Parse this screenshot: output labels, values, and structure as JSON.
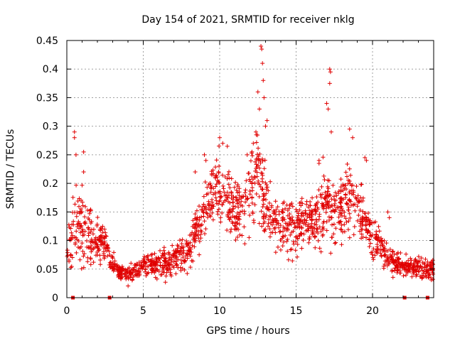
{
  "chart_data": {
    "type": "scatter",
    "title": "Day 154 of 2021, SRMTID for receiver nklg",
    "xlabel": "GPS time / hours",
    "ylabel": "SRMTID / TECUs",
    "xlim": [
      0,
      24
    ],
    "ylim": [
      0,
      0.45
    ],
    "xticks": [
      0,
      5,
      10,
      15,
      20
    ],
    "xtick_labels": [
      "0",
      "5",
      "10",
      "15",
      "20"
    ],
    "yticks": [
      0,
      0.05,
      0.1,
      0.15,
      0.2,
      0.25,
      0.3,
      0.35,
      0.4,
      0.45
    ],
    "ytick_labels": [
      "0",
      "0.05",
      "0.1",
      "0.15",
      "0.2",
      "0.25",
      "0.3",
      "0.35",
      "0.4",
      "0.45"
    ],
    "grid": true,
    "marker": "plus",
    "color": "#e00000",
    "baseline_markers_x": [
      0.4,
      2.8,
      22.1,
      23.6
    ],
    "series": [
      {
        "name": "SRMTID",
        "profile": [
          [
            0.0,
            0.07,
            0.025
          ],
          [
            0.5,
            0.12,
            0.06
          ],
          [
            1.0,
            0.12,
            0.05
          ],
          [
            1.5,
            0.11,
            0.04
          ],
          [
            2.0,
            0.1,
            0.03
          ],
          [
            2.5,
            0.09,
            0.03
          ],
          [
            3.0,
            0.06,
            0.015
          ],
          [
            3.5,
            0.045,
            0.012
          ],
          [
            4.0,
            0.04,
            0.012
          ],
          [
            4.5,
            0.045,
            0.012
          ],
          [
            5.0,
            0.055,
            0.015
          ],
          [
            6.0,
            0.06,
            0.02
          ],
          [
            7.0,
            0.065,
            0.02
          ],
          [
            8.0,
            0.08,
            0.025
          ],
          [
            8.5,
            0.12,
            0.04
          ],
          [
            9.0,
            0.16,
            0.05
          ],
          [
            9.5,
            0.18,
            0.05
          ],
          [
            10.0,
            0.2,
            0.05
          ],
          [
            10.5,
            0.18,
            0.05
          ],
          [
            11.0,
            0.15,
            0.04
          ],
          [
            11.5,
            0.16,
            0.05
          ],
          [
            12.0,
            0.18,
            0.06
          ],
          [
            12.5,
            0.22,
            0.07
          ],
          [
            13.0,
            0.16,
            0.05
          ],
          [
            13.5,
            0.14,
            0.04
          ],
          [
            14.0,
            0.13,
            0.04
          ],
          [
            14.5,
            0.12,
            0.035
          ],
          [
            15.0,
            0.12,
            0.035
          ],
          [
            15.5,
            0.13,
            0.04
          ],
          [
            16.0,
            0.13,
            0.04
          ],
          [
            16.5,
            0.14,
            0.05
          ],
          [
            17.0,
            0.17,
            0.06
          ],
          [
            17.5,
            0.15,
            0.05
          ],
          [
            18.0,
            0.16,
            0.05
          ],
          [
            18.5,
            0.17,
            0.05
          ],
          [
            19.0,
            0.16,
            0.05
          ],
          [
            19.5,
            0.13,
            0.04
          ],
          [
            20.0,
            0.1,
            0.03
          ],
          [
            20.5,
            0.09,
            0.025
          ],
          [
            21.0,
            0.07,
            0.02
          ],
          [
            21.5,
            0.06,
            0.015
          ],
          [
            22.0,
            0.055,
            0.015
          ],
          [
            23.0,
            0.05,
            0.015
          ],
          [
            24.0,
            0.05,
            0.015
          ]
        ],
        "spikes": [
          [
            0.5,
            0.29
          ],
          [
            0.5,
            0.28
          ],
          [
            0.6,
            0.25
          ],
          [
            1.1,
            0.255
          ],
          [
            1.1,
            0.22
          ],
          [
            8.4,
            0.22
          ],
          [
            9.0,
            0.25
          ],
          [
            9.1,
            0.24
          ],
          [
            10.0,
            0.28
          ],
          [
            10.2,
            0.27
          ],
          [
            10.5,
            0.265
          ],
          [
            11.8,
            0.25
          ],
          [
            12.2,
            0.27
          ],
          [
            12.4,
            0.285
          ],
          [
            12.5,
            0.36
          ],
          [
            12.6,
            0.33
          ],
          [
            12.7,
            0.44
          ],
          [
            12.75,
            0.435
          ],
          [
            12.8,
            0.41
          ],
          [
            12.85,
            0.38
          ],
          [
            12.9,
            0.35
          ],
          [
            13.0,
            0.3
          ],
          [
            13.1,
            0.31
          ],
          [
            16.5,
            0.24
          ],
          [
            16.5,
            0.235
          ],
          [
            17.0,
            0.34
          ],
          [
            17.1,
            0.33
          ],
          [
            17.2,
            0.4
          ],
          [
            17.25,
            0.395
          ],
          [
            17.2,
            0.375
          ],
          [
            17.3,
            0.29
          ],
          [
            18.5,
            0.295
          ],
          [
            18.7,
            0.28
          ],
          [
            19.5,
            0.245
          ],
          [
            19.6,
            0.24
          ],
          [
            21.0,
            0.15
          ],
          [
            21.1,
            0.14
          ]
        ]
      }
    ]
  }
}
